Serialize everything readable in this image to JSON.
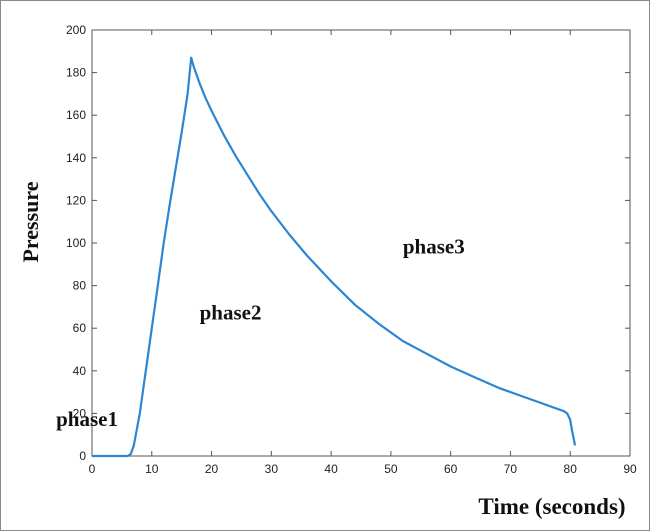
{
  "chart_data": {
    "type": "line",
    "title": "",
    "xlabel": "Time (seconds)",
    "ylabel": "Pressure",
    "xlim": [
      0,
      90
    ],
    "ylim": [
      0,
      200
    ],
    "xticks": [
      0,
      10,
      20,
      30,
      40,
      50,
      60,
      70,
      80,
      90
    ],
    "yticks": [
      0,
      20,
      40,
      60,
      80,
      100,
      120,
      140,
      160,
      180,
      200
    ],
    "grid": false,
    "legend": "none",
    "line_color": "#2d86d2",
    "series": [
      {
        "x": [
          0,
          6,
          6.5,
          7,
          8,
          9,
          10,
          11,
          12,
          13,
          14,
          15,
          16,
          16.6,
          17,
          18,
          19,
          20,
          22,
          24,
          26,
          28,
          30,
          33,
          36,
          40,
          44,
          48,
          52,
          56,
          60,
          64,
          68,
          72,
          76,
          79,
          79.5,
          80,
          80.3,
          80.6,
          80.8
        ],
        "y": [
          0,
          0,
          1,
          5,
          20,
          40,
          60,
          80,
          100,
          118,
          135,
          152,
          170,
          187,
          183,
          175,
          168,
          162,
          151,
          141,
          132,
          123,
          115,
          104,
          94,
          82,
          71,
          62,
          54,
          48,
          42,
          37,
          32,
          28,
          24,
          21,
          20,
          17,
          12,
          8,
          5
        ]
      }
    ],
    "annotations": [
      {
        "text": "phase1",
        "x": -6,
        "y": 14
      },
      {
        "text": "phase2",
        "x": 18,
        "y": 64
      },
      {
        "text": "phase3",
        "x": 52,
        "y": 95
      }
    ]
  }
}
